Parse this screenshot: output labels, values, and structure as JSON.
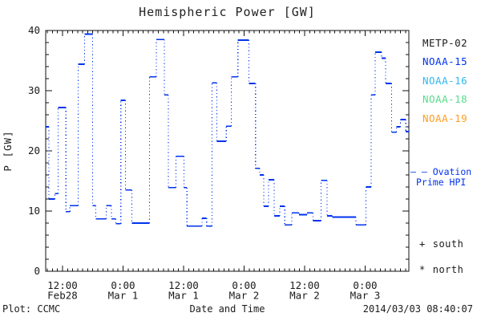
{
  "title": "Hemispheric Power [GW]",
  "footer": {
    "plot_credit": "Plot: CCMC",
    "timestamp": "2014/03/03 08:40:07"
  },
  "legend": {
    "satellites": [
      {
        "label": "METP-02",
        "color": "#1a1a1a"
      },
      {
        "label": "NOAA-15",
        "color": "#0033ee"
      },
      {
        "label": "NOAA-16",
        "color": "#2eb8ee"
      },
      {
        "label": "NOAA-18",
        "color": "#55dd88"
      },
      {
        "label": "NOAA-19",
        "color": "#ff9d20"
      }
    ],
    "model_line": {
      "dash_sample": "– —",
      "label_line1": "Ovation",
      "label_line2": "Prime HPI",
      "color": "#0033ee"
    },
    "hemisphere_markers": [
      {
        "symbol": "+",
        "label": "south"
      },
      {
        "symbol": "*",
        "label": "north"
      }
    ]
  },
  "chart_data": {
    "type": "line",
    "style": "step",
    "title": "Hemispheric Power [GW]",
    "xlabel": "Date and Time",
    "ylabel": "P [GW]",
    "ylim": [
      0,
      40
    ],
    "y_major_ticks": [
      0,
      10,
      20,
      30,
      40
    ],
    "y_minor_step": 2,
    "x_span_hours": 72,
    "x_minor_step_hours": 1,
    "x_major_ticks": [
      {
        "hour": 3.333,
        "time": "12:00",
        "date": "Feb28"
      },
      {
        "hour": 15.333,
        "time": "0:00",
        "date": "Mar 1"
      },
      {
        "hour": 27.333,
        "time": "12:00",
        "date": "Mar 1"
      },
      {
        "hour": 39.333,
        "time": "0:00",
        "date": "Mar 2"
      },
      {
        "hour": 51.333,
        "time": "12:00",
        "date": "Mar 2"
      },
      {
        "hour": 63.333,
        "time": "0:00",
        "date": "Mar 3"
      }
    ],
    "grid": false,
    "legend_position": "right",
    "series": [
      {
        "name": "Ovation Prime HPI",
        "color": "#0033ee",
        "end_hour": 72,
        "points_hour_gw": [
          [
            0,
            24.0
          ],
          [
            0.64,
            12.0
          ],
          [
            1.8,
            12.9
          ],
          [
            2.45,
            27.2
          ],
          [
            4.0,
            9.9
          ],
          [
            4.8,
            10.9
          ],
          [
            6.4,
            34.4
          ],
          [
            7.7,
            39.4
          ],
          [
            9.3,
            10.9
          ],
          [
            9.9,
            8.7
          ],
          [
            12.0,
            10.9
          ],
          [
            13.0,
            8.7
          ],
          [
            13.9,
            7.9
          ],
          [
            14.9,
            28.4
          ],
          [
            15.8,
            13.5
          ],
          [
            17.1,
            8.0
          ],
          [
            20.6,
            32.3
          ],
          [
            21.9,
            38.5
          ],
          [
            23.5,
            29.3
          ],
          [
            24.3,
            13.9
          ],
          [
            25.8,
            19.1
          ],
          [
            27.4,
            13.9
          ],
          [
            28.0,
            7.5
          ],
          [
            31.0,
            8.8
          ],
          [
            31.9,
            7.5
          ],
          [
            33.0,
            31.3
          ],
          [
            33.9,
            21.6
          ],
          [
            35.8,
            24.1
          ],
          [
            36.8,
            32.3
          ],
          [
            38.1,
            38.4
          ],
          [
            40.3,
            31.2
          ],
          [
            41.6,
            17.1
          ],
          [
            42.4,
            16.0
          ],
          [
            43.2,
            10.8
          ],
          [
            44.2,
            15.2
          ],
          [
            45.3,
            9.2
          ],
          [
            46.4,
            10.8
          ],
          [
            47.4,
            7.7
          ],
          [
            48.8,
            9.7
          ],
          [
            50.2,
            9.4
          ],
          [
            51.8,
            9.7
          ],
          [
            53.0,
            8.4
          ],
          [
            54.6,
            15.1
          ],
          [
            55.8,
            9.2
          ],
          [
            56.8,
            9.0
          ],
          [
            61.5,
            7.7
          ],
          [
            63.5,
            14.0
          ],
          [
            64.5,
            29.3
          ],
          [
            65.3,
            36.4
          ],
          [
            66.6,
            35.4
          ],
          [
            67.4,
            31.2
          ],
          [
            68.6,
            23.1
          ],
          [
            69.5,
            24.0
          ],
          [
            70.3,
            25.2
          ],
          [
            71.4,
            23.2
          ]
        ]
      }
    ]
  }
}
